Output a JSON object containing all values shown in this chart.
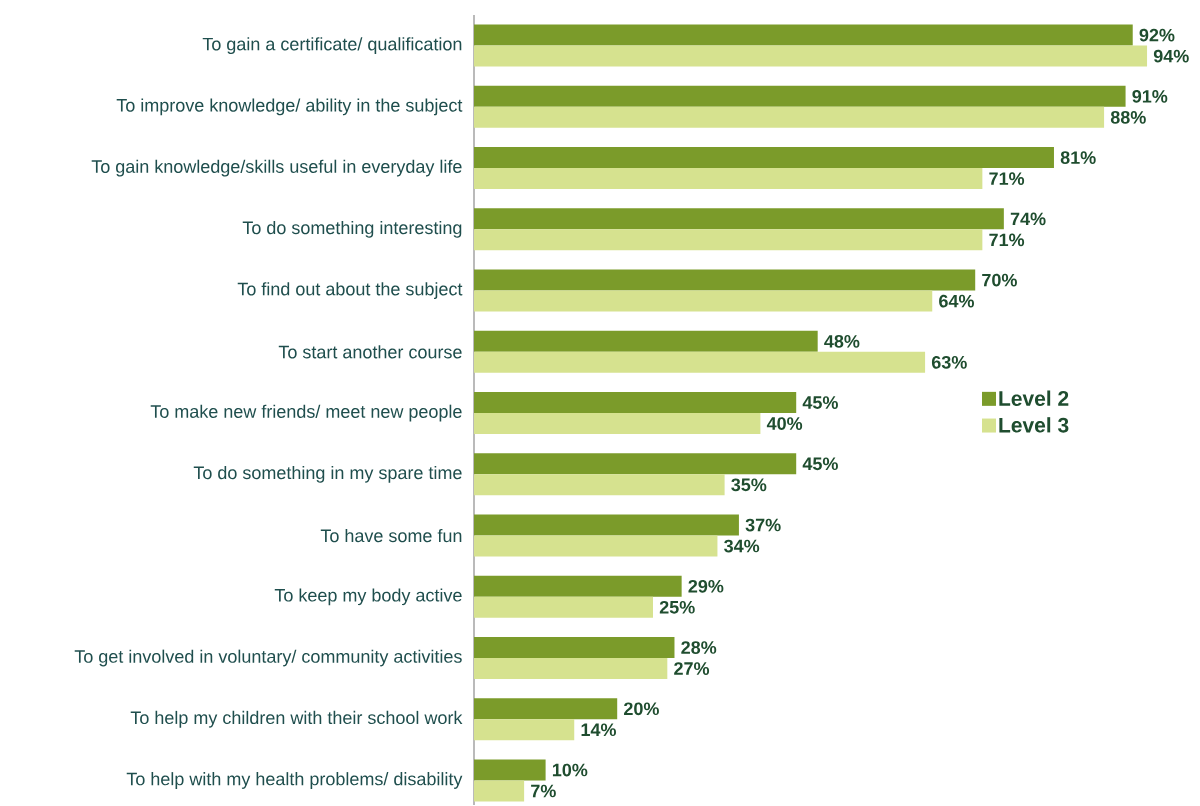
{
  "chart_data": {
    "type": "bar",
    "orientation": "horizontal",
    "categories": [
      "To gain a certificate/ qualification",
      "To improve knowledge/ ability in the subject",
      "To gain knowledge/skills useful in everyday life",
      "To do something interesting",
      "To find out about the subject",
      "To start another course",
      "To make new friends/ meet new people",
      "To do something in my spare time",
      "To have some fun",
      "To keep my body active",
      "To get involved in voluntary/ community activities",
      "To help my children with their school work",
      "To help with my health problems/ disability"
    ],
    "series": [
      {
        "name": "Level 2",
        "color": "#7b9b2a",
        "values": [
          92,
          91,
          81,
          74,
          70,
          48,
          45,
          45,
          37,
          29,
          28,
          20,
          10
        ],
        "value_labels": [
          "92%",
          "91%",
          "81%",
          "74%",
          "70%",
          "48%",
          "45%",
          "45%",
          "37%",
          "29%",
          "28%",
          "20%",
          "10%"
        ]
      },
      {
        "name": "Level 3",
        "color": "#d6e28f",
        "values": [
          94,
          88,
          71,
          71,
          64,
          63,
          40,
          35,
          34,
          25,
          27,
          14,
          7
        ],
        "value_labels": [
          "94%",
          "88%",
          "71%",
          "71%",
          "64%",
          "63%",
          "40%",
          "35%",
          "34%",
          "25%",
          "27%",
          "14%",
          "7%"
        ]
      }
    ],
    "legend": "right"
  }
}
